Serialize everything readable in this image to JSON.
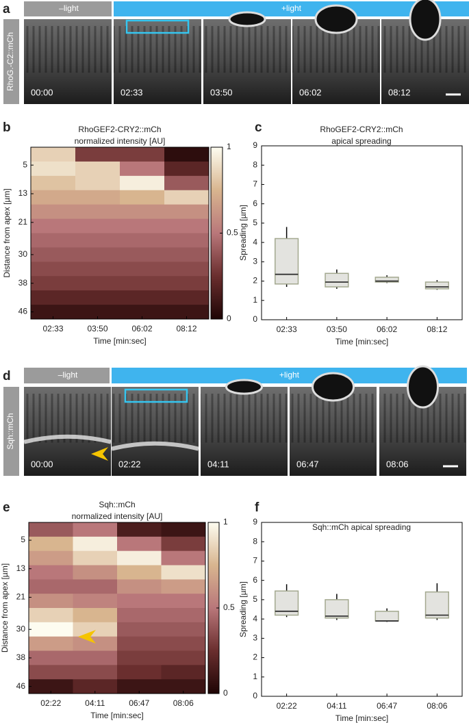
{
  "panels": {
    "a": {
      "label": "a",
      "dark_label": "–light",
      "light_label": "+light",
      "construct": "RhoG.-C2::mCh",
      "times": [
        "00:00",
        "02:33",
        "03:50",
        "06:02",
        "08:12"
      ]
    },
    "d": {
      "label": "d",
      "dark_label": "–light",
      "light_label": "+light",
      "construct": "Sqh::mCh",
      "times": [
        "00:00",
        "02:22",
        "04:11",
        "06:47",
        "08:06"
      ]
    }
  },
  "chart_data": [
    {
      "type": "heatmap",
      "panel_label": "b",
      "title": [
        "RhoGEF2-CRY2::mCh",
        "normalized intensity [AU]"
      ],
      "xlabel": "Time [min:sec]",
      "ylabel": "Distance from apex [µm]",
      "categories": [
        "02:33",
        "03:50",
        "06:02",
        "08:12"
      ],
      "y_bins": [
        0,
        4,
        8,
        12,
        16,
        20,
        24,
        28,
        32,
        36,
        40,
        44,
        48
      ],
      "z": [
        [
          0.85,
          0.9,
          0.8,
          0.7,
          0.6,
          0.5,
          0.45,
          0.4,
          0.35,
          0.3,
          0.2,
          0.1
        ],
        [
          0.3,
          0.85,
          0.85,
          0.7,
          0.6,
          0.5,
          0.45,
          0.4,
          0.35,
          0.3,
          0.2,
          0.1
        ],
        [
          0.3,
          0.5,
          0.95,
          0.75,
          0.6,
          0.5,
          0.45,
          0.4,
          0.35,
          0.3,
          0.2,
          0.1
        ],
        [
          0.05,
          0.2,
          0.4,
          0.85,
          0.6,
          0.5,
          0.45,
          0.4,
          0.35,
          0.3,
          0.2,
          0.1
        ]
      ],
      "ylim": [
        0,
        48
      ],
      "yticks": [
        5,
        13,
        21,
        30,
        38,
        46
      ],
      "clim": [
        0,
        1
      ],
      "cticks": [
        0,
        0.5,
        1
      ],
      "colormap": [
        "#1e0505",
        "#6a2e2e",
        "#b9777a",
        "#d8b58f",
        "#fdfcf0"
      ]
    },
    {
      "type": "box",
      "panel_label": "c",
      "title": [
        "RhoGEF2-CRY2::mCh",
        "apical spreading"
      ],
      "xlabel": "Time [min:sec]",
      "ylabel": "Spreading [µm]",
      "categories": [
        "02:33",
        "03:50",
        "06:02",
        "08:12"
      ],
      "boxes": [
        {
          "min": 1.7,
          "q1": 1.85,
          "median": 2.35,
          "q3": 4.2,
          "max": 4.8
        },
        {
          "min": 1.6,
          "q1": 1.7,
          "median": 1.95,
          "q3": 2.4,
          "max": 2.6
        },
        {
          "min": 1.9,
          "q1": 1.95,
          "median": 2.0,
          "q3": 2.2,
          "max": 2.3
        },
        {
          "min": 1.55,
          "q1": 1.6,
          "median": 1.7,
          "q3": 1.95,
          "max": 2.05
        }
      ],
      "ylim": [
        0,
        9
      ],
      "yticks": [
        0,
        1,
        2,
        3,
        4,
        5,
        6,
        7,
        8,
        9
      ],
      "color": "#e3e3df",
      "edge_color": "#a3a88f",
      "median_color": "#333333"
    },
    {
      "type": "heatmap",
      "panel_label": "e",
      "title": [
        "Sqh::mCh",
        "normalized intensity [AU]"
      ],
      "xlabel": "Time [min:sec]",
      "ylabel": "Distance from apex [µm]",
      "categories": [
        "02:22",
        "04:11",
        "06:47",
        "08:06"
      ],
      "y_bins": [
        0,
        4,
        8,
        12,
        16,
        20,
        24,
        28,
        32,
        36,
        40,
        44,
        48
      ],
      "z": [
        [
          0.4,
          0.75,
          0.65,
          0.5,
          0.45,
          0.6,
          0.85,
          1.0,
          0.65,
          0.45,
          0.35,
          0.1
        ],
        [
          0.5,
          0.95,
          0.85,
          0.6,
          0.45,
          0.55,
          0.75,
          0.85,
          0.6,
          0.45,
          0.35,
          0.2
        ],
        [
          0.15,
          0.5,
          0.95,
          0.75,
          0.6,
          0.5,
          0.45,
          0.4,
          0.35,
          0.3,
          0.25,
          0.1
        ],
        [
          0.1,
          0.3,
          0.5,
          0.9,
          0.65,
          0.5,
          0.45,
          0.4,
          0.35,
          0.3,
          0.2,
          0.1
        ]
      ],
      "ylim": [
        0,
        48
      ],
      "yticks": [
        5,
        13,
        21,
        30,
        38,
        46
      ],
      "clim": [
        0,
        1
      ],
      "cticks": [
        0,
        0.5,
        1
      ],
      "colormap": [
        "#1e0505",
        "#6a2e2e",
        "#b9777a",
        "#d8b58f",
        "#fdfcf0"
      ]
    },
    {
      "type": "box",
      "panel_label": "f",
      "title": [
        "Sqh::mCh apical spreading"
      ],
      "xlabel": "Time [min:sec]",
      "ylabel": "Spreading [µm]",
      "categories": [
        "02:22",
        "04:11",
        "06:47",
        "08:06"
      ],
      "boxes": [
        {
          "min": 4.1,
          "q1": 4.2,
          "median": 4.4,
          "q3": 5.45,
          "max": 5.8
        },
        {
          "min": 3.95,
          "q1": 4.05,
          "median": 4.15,
          "q3": 5.0,
          "max": 5.3
        },
        {
          "min": 3.85,
          "q1": 3.9,
          "median": 3.9,
          "q3": 4.4,
          "max": 4.55
        },
        {
          "min": 3.95,
          "q1": 4.05,
          "median": 4.2,
          "q3": 5.4,
          "max": 5.85
        }
      ],
      "ylim": [
        0,
        9
      ],
      "yticks": [
        0,
        1,
        2,
        3,
        4,
        5,
        6,
        7,
        8,
        9
      ],
      "color": "#e3e3df",
      "edge_color": "#a3a88f",
      "median_color": "#333333"
    }
  ]
}
